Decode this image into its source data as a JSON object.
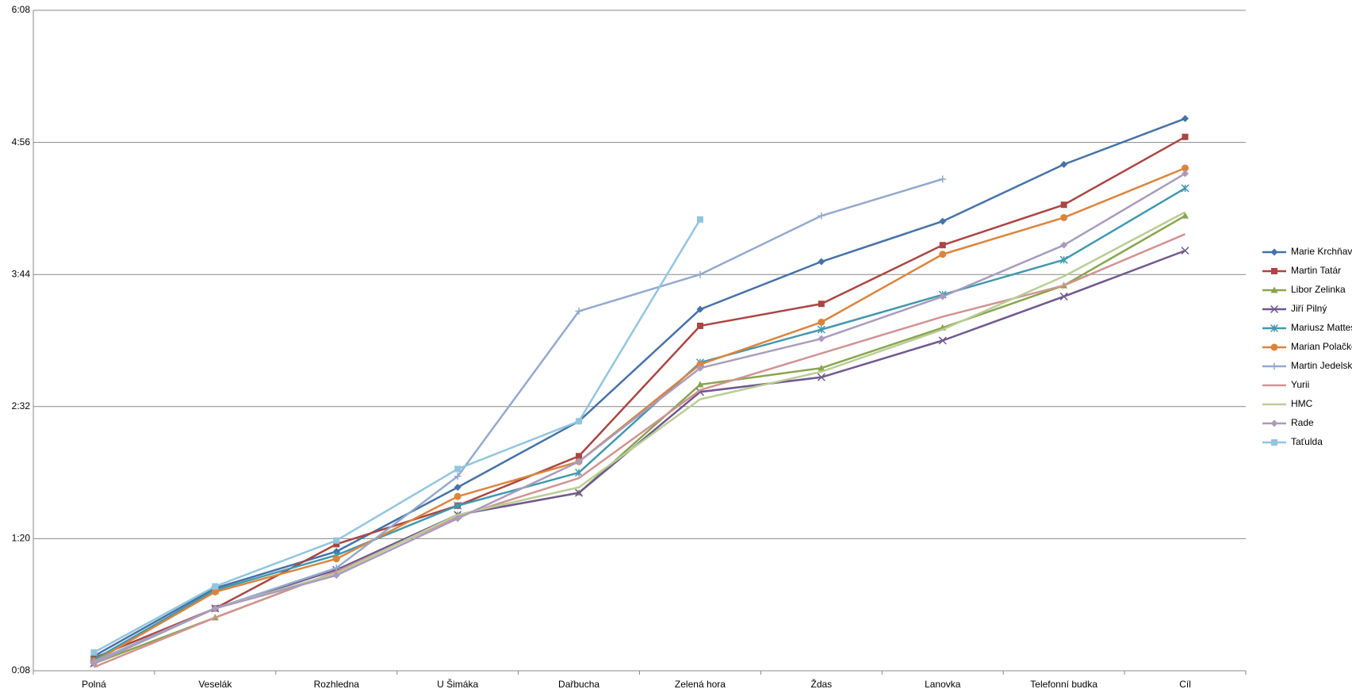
{
  "chart_data": {
    "type": "line",
    "categories": [
      "Polná",
      "Veselák",
      "Rozhledna",
      "U Šimáka",
      "Dařbucha",
      "Zelená hora",
      "Ždas",
      "Lanovka",
      "Telefonní budka",
      "Cíl"
    ],
    "ylim": [
      8,
      368
    ],
    "yticks": [
      {
        "value": 8,
        "label": "0:08"
      },
      {
        "value": 80,
        "label": "1:20"
      },
      {
        "value": 152,
        "label": "2:32"
      },
      {
        "value": 224,
        "label": "3:44"
      },
      {
        "value": 296,
        "label": "4:56"
      },
      {
        "value": 368,
        "label": "6:08"
      }
    ],
    "grid": true,
    "legend": "right",
    "series": [
      {
        "name": "Marie Krchňavá",
        "color": "#4572a7",
        "marker": "diamond",
        "values": [
          16,
          53,
          73,
          108,
          144,
          205,
          231,
          253,
          284,
          309
        ]
      },
      {
        "name": "Martin Tatár",
        "color": "#aa4643",
        "marker": "square",
        "values": [
          15,
          42,
          77,
          98,
          125,
          196,
          208,
          240,
          262,
          299
        ]
      },
      {
        "name": "Libor Zelinka",
        "color": "#89a54e",
        "marker": "triangle",
        "values": [
          12,
          37,
          62,
          93,
          105,
          164,
          173,
          195,
          218,
          256
        ]
      },
      {
        "name": "Jiří Pilný",
        "color": "#71588f",
        "marker": "x",
        "values": [
          12,
          42,
          63,
          93,
          105,
          160,
          168,
          188,
          212,
          237
        ]
      },
      {
        "name": "Mariusz Mattes",
        "color": "#4198af",
        "marker": "star",
        "values": [
          14,
          52,
          71,
          98,
          116,
          176,
          194,
          213,
          232,
          271
        ]
      },
      {
        "name": "Marian Polačko",
        "color": "#db843d",
        "marker": "circle",
        "values": [
          13,
          51,
          69,
          103,
          122,
          175,
          198,
          235,
          255,
          282
        ]
      },
      {
        "name": "Martin Jedelský",
        "color": "#93a9cf",
        "marker": "plus",
        "values": [
          13,
          42,
          64,
          114,
          204,
          224,
          256,
          276,
          null,
          null
        ]
      },
      {
        "name": "Yurii",
        "color": "#d19392",
        "marker": "none",
        "values": [
          10,
          37,
          62,
          92,
          113,
          161,
          181,
          201,
          218,
          246
        ]
      },
      {
        "name": "HMC",
        "color": "#b9cd96",
        "marker": "none",
        "values": [
          12,
          42,
          61,
          93,
          108,
          156,
          171,
          194,
          223,
          258
        ]
      },
      {
        "name": "Rade",
        "color": "#a99bbd",
        "marker": "diamond",
        "values": [
          12,
          42,
          60,
          91,
          122,
          173,
          189,
          212,
          240,
          279
        ]
      },
      {
        "name": "Taťulda",
        "color": "#92c5de",
        "marker": "square",
        "values": [
          18,
          54,
          79,
          118,
          144,
          254,
          null,
          null,
          null,
          null
        ]
      }
    ]
  }
}
